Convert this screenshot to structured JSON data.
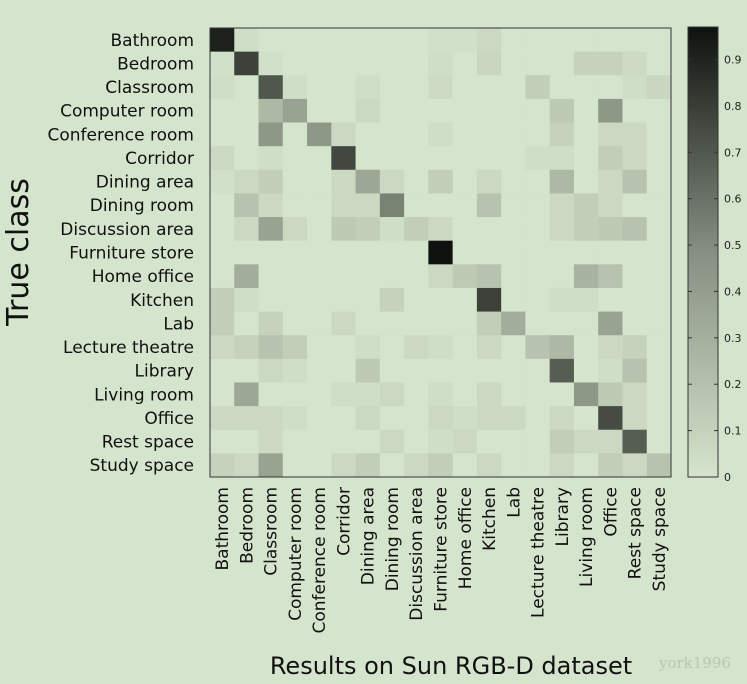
{
  "chart_data": {
    "type": "heatmap",
    "title": "",
    "xlabel": "Results on Sun RGB-D dataset",
    "ylabel": "True class",
    "rows": [
      "Bathroom",
      "Bedroom",
      "Classroom",
      "Computer room",
      "Conference room",
      "Corridor",
      "Dining area",
      "Dining room",
      "Discussion area",
      "Furniture store",
      "Home office",
      "Kitchen",
      "Lab",
      "Lecture theatre",
      "Library",
      "Living room",
      "Office",
      "Rest space",
      "Study space"
    ],
    "columns": [
      "Bathroom",
      "Bedroom",
      "Classroom",
      "Computer room",
      "Conference room",
      "Corridor",
      "Dining area",
      "Dining room",
      "Discussion area",
      "Furniture store",
      "Home office",
      "Kitchen",
      "Lab",
      "Lecture theatre",
      "Library",
      "Living room",
      "Office",
      "Rest space",
      "Study space"
    ],
    "values": [
      [
        0.9,
        0.03,
        0,
        0,
        0,
        0,
        0,
        0,
        0,
        0.02,
        0.02,
        0.05,
        0,
        0,
        0,
        0,
        0,
        0,
        0
      ],
      [
        0.02,
        0.75,
        0.02,
        0,
        0,
        0,
        0,
        0,
        0,
        0.03,
        0,
        0.06,
        0,
        0,
        0,
        0.08,
        0.08,
        0.04,
        0
      ],
      [
        0.03,
        0,
        0.65,
        0.03,
        0,
        0,
        0.03,
        0,
        0,
        0.04,
        0,
        0,
        0,
        0.1,
        0,
        0,
        0,
        0.03,
        0.06
      ],
      [
        0,
        0,
        0.2,
        0.3,
        0,
        0,
        0.05,
        0,
        0,
        0,
        0,
        0,
        0,
        0,
        0.12,
        0,
        0.35,
        0,
        0
      ],
      [
        0,
        0,
        0.35,
        0,
        0.35,
        0.05,
        0,
        0,
        0,
        0.03,
        0,
        0,
        0,
        0,
        0.08,
        0,
        0.05,
        0.05,
        0
      ],
      [
        0.05,
        0,
        0.03,
        0,
        0,
        0.72,
        0,
        0,
        0,
        0,
        0,
        0,
        0,
        0.03,
        0.03,
        0,
        0.1,
        0.05,
        0
      ],
      [
        0.02,
        0.05,
        0.1,
        0,
        0,
        0.05,
        0.28,
        0.05,
        0,
        0.1,
        0,
        0.05,
        0,
        0,
        0.2,
        0,
        0.05,
        0.15,
        0
      ],
      [
        0,
        0.15,
        0.05,
        0,
        0,
        0.05,
        0.05,
        0.45,
        0,
        0,
        0,
        0.15,
        0,
        0,
        0.05,
        0.1,
        0.05,
        0,
        0
      ],
      [
        0,
        0.05,
        0.3,
        0.05,
        0,
        0.12,
        0.1,
        0.03,
        0.1,
        0.05,
        0,
        0,
        0,
        0,
        0.05,
        0.1,
        0.12,
        0.15,
        0
      ],
      [
        0,
        0,
        0,
        0,
        0,
        0,
        0,
        0,
        0,
        0.98,
        0,
        0,
        0,
        0,
        0,
        0,
        0,
        0,
        0
      ],
      [
        0,
        0.25,
        0,
        0,
        0,
        0,
        0,
        0,
        0,
        0.05,
        0.12,
        0.15,
        0,
        0,
        0,
        0.22,
        0.15,
        0,
        0
      ],
      [
        0.1,
        0.03,
        0,
        0,
        0,
        0,
        0,
        0.08,
        0,
        0,
        0,
        0.75,
        0,
        0,
        0.03,
        0.03,
        0,
        0,
        0
      ],
      [
        0.1,
        0,
        0.08,
        0,
        0,
        0.05,
        0,
        0,
        0,
        0,
        0,
        0.1,
        0.25,
        0,
        0,
        0,
        0.3,
        0,
        0
      ],
      [
        0.05,
        0.08,
        0.15,
        0.1,
        0,
        0,
        0.03,
        0,
        0.05,
        0.03,
        0,
        0.05,
        0,
        0.15,
        0.2,
        0,
        0.05,
        0.08,
        0
      ],
      [
        0,
        0,
        0.05,
        0.03,
        0,
        0,
        0.12,
        0,
        0,
        0,
        0,
        0,
        0,
        0,
        0.62,
        0,
        0.03,
        0.15,
        0
      ],
      [
        0,
        0.28,
        0,
        0,
        0,
        0.03,
        0.03,
        0.05,
        0,
        0.03,
        0,
        0.05,
        0,
        0,
        0,
        0.35,
        0.12,
        0.05,
        0
      ],
      [
        0.05,
        0.05,
        0.05,
        0.03,
        0,
        0,
        0.05,
        0,
        0,
        0.05,
        0.03,
        0.05,
        0.05,
        0,
        0.05,
        0,
        0.7,
        0.05,
        0
      ],
      [
        0,
        0,
        0.05,
        0,
        0,
        0,
        0,
        0.05,
        0,
        0.03,
        0.05,
        0,
        0,
        0,
        0.1,
        0.05,
        0.05,
        0.62,
        0
      ],
      [
        0.08,
        0.05,
        0.3,
        0,
        0,
        0.05,
        0.1,
        0,
        0.05,
        0.1,
        0,
        0.05,
        0,
        0,
        0.05,
        0,
        0.1,
        0.05,
        0.15
      ]
    ],
    "colorbar": {
      "ticks": [
        "0",
        "0.1",
        "0.2",
        "0.3",
        "0.4",
        "0.5",
        "0.6",
        "0.7",
        "0.8",
        "0.9"
      ],
      "range": [
        0,
        0.97
      ]
    },
    "colors": {
      "low": "#d5e4cc",
      "high": "#0f120e"
    },
    "grid": false
  },
  "watermark": "york1996"
}
